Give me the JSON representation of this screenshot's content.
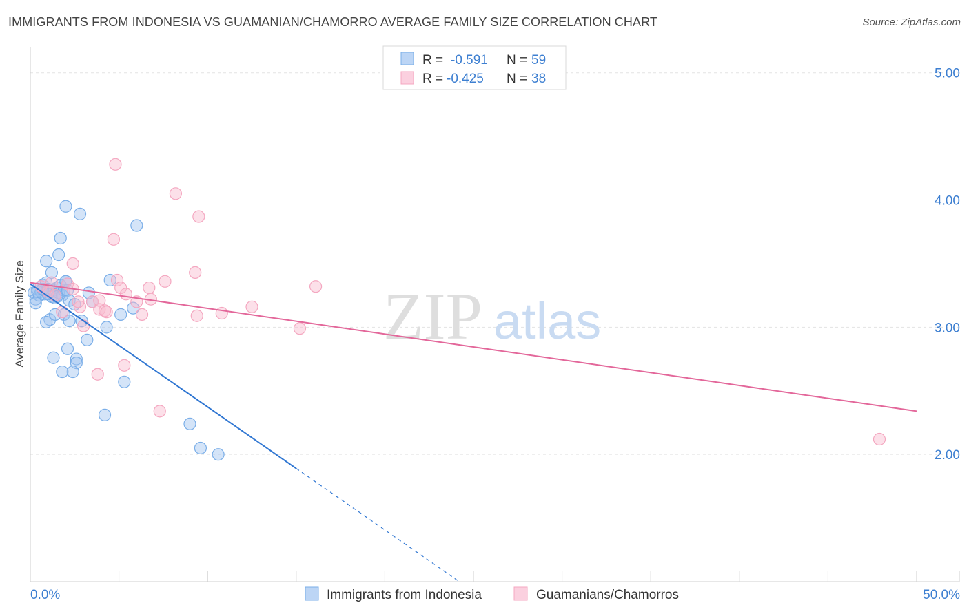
{
  "title": "IMMIGRANTS FROM INDONESIA VS GUAMANIAN/CHAMORRO AVERAGE FAMILY SIZE CORRELATION CHART",
  "source": "Source: ZipAtlas.com",
  "watermark": {
    "zip": "ZIP",
    "atlas": "atlas"
  },
  "legend": [
    {
      "r_label": "R =",
      "r_value": "-0.591",
      "n_label": "N =",
      "n_value": "59"
    },
    {
      "r_label": "R =",
      "r_value": "-0.425",
      "n_label": "N =",
      "n_value": "38"
    }
  ],
  "chart_data": {
    "type": "scatter",
    "title": "IMMIGRANTS FROM INDONESIA VS GUAMANIAN/CHAMORRO AVERAGE FAMILY SIZE CORRELATION CHART",
    "xlabel": "",
    "ylabel": "Average Family Size",
    "xlim": [
      0,
      50
    ],
    "ylim": [
      1.0,
      5.15
    ],
    "x_tick_labels": [
      "0.0%",
      "50.0%"
    ],
    "y_ticks": [
      2.0,
      3.0,
      4.0,
      5.0
    ],
    "y_tick_labels": [
      "2.00",
      "3.00",
      "4.00",
      "5.00"
    ],
    "colors": {
      "blue": "#7aaee8",
      "blue_line": "#2f76d2",
      "pink": "#f4a7c0",
      "pink_line": "#e3679a",
      "tick": "#3d7fd1"
    },
    "series": [
      {
        "name": "Immigrants from Indonesia",
        "color": "blue",
        "points": [
          [
            0.2,
            3.27
          ],
          [
            0.3,
            3.22
          ],
          [
            0.4,
            3.3
          ],
          [
            0.5,
            3.25
          ],
          [
            0.6,
            3.28
          ],
          [
            0.7,
            3.33
          ],
          [
            0.8,
            3.26
          ],
          [
            0.9,
            3.35
          ],
          [
            1.0,
            3.3
          ],
          [
            1.1,
            3.28
          ],
          [
            1.2,
            3.24
          ],
          [
            1.3,
            3.29
          ],
          [
            1.4,
            3.23
          ],
          [
            1.5,
            3.31
          ],
          [
            1.6,
            3.27
          ],
          [
            1.7,
            3.33
          ],
          [
            1.8,
            3.25
          ],
          [
            1.9,
            3.29
          ],
          [
            2.0,
            3.36
          ],
          [
            2.1,
            3.29
          ],
          [
            2.2,
            3.21
          ],
          [
            0.3,
            3.19
          ],
          [
            0.9,
            3.52
          ],
          [
            1.1,
            3.06
          ],
          [
            1.4,
            3.1
          ],
          [
            1.6,
            3.57
          ],
          [
            1.9,
            3.1
          ],
          [
            2.0,
            3.36
          ],
          [
            2.2,
            3.05
          ],
          [
            0.9,
            3.04
          ],
          [
            1.2,
            3.43
          ],
          [
            1.7,
            3.7
          ],
          [
            2.0,
            3.95
          ],
          [
            2.8,
            3.89
          ],
          [
            6.0,
            3.8
          ],
          [
            2.9,
            3.05
          ],
          [
            3.3,
            3.27
          ],
          [
            4.3,
            3.0
          ],
          [
            4.5,
            3.37
          ],
          [
            5.1,
            3.1
          ],
          [
            5.8,
            3.15
          ],
          [
            3.2,
            2.9
          ],
          [
            2.1,
            2.83
          ],
          [
            2.6,
            2.75
          ],
          [
            2.6,
            2.72
          ],
          [
            1.3,
            2.76
          ],
          [
            2.4,
            2.65
          ],
          [
            1.8,
            2.65
          ],
          [
            5.3,
            2.57
          ],
          [
            4.2,
            2.31
          ],
          [
            9.0,
            2.24
          ],
          [
            9.6,
            2.05
          ],
          [
            10.6,
            2.0
          ],
          [
            0.4,
            3.28
          ],
          [
            0.7,
            3.3
          ],
          [
            1.0,
            3.26
          ],
          [
            1.5,
            3.24
          ],
          [
            2.5,
            3.18
          ],
          [
            3.5,
            3.2
          ]
        ],
        "trend": {
          "x0": 0.0,
          "y0": 3.34,
          "x1": 15.0,
          "y1": 1.89,
          "dash_x1": 24.2,
          "dash_y1": 1.0
        }
      },
      {
        "name": "Guamanians/Chamorros",
        "color": "pink",
        "points": [
          [
            0.6,
            3.32
          ],
          [
            1.0,
            3.28
          ],
          [
            1.4,
            3.25
          ],
          [
            2.1,
            3.34
          ],
          [
            2.4,
            3.3
          ],
          [
            2.4,
            3.5
          ],
          [
            1.8,
            3.12
          ],
          [
            2.8,
            3.16
          ],
          [
            3.0,
            3.01
          ],
          [
            3.5,
            3.2
          ],
          [
            3.9,
            3.14
          ],
          [
            3.9,
            3.21
          ],
          [
            4.2,
            3.13
          ],
          [
            4.7,
            3.69
          ],
          [
            4.9,
            3.37
          ],
          [
            5.1,
            3.31
          ],
          [
            5.4,
            3.26
          ],
          [
            6.0,
            3.2
          ],
          [
            6.3,
            3.1
          ],
          [
            6.7,
            3.31
          ],
          [
            6.8,
            3.22
          ],
          [
            7.6,
            3.36
          ],
          [
            4.3,
            3.12
          ],
          [
            8.2,
            4.05
          ],
          [
            9.5,
            3.87
          ],
          [
            9.3,
            3.43
          ],
          [
            9.4,
            3.09
          ],
          [
            10.8,
            3.11
          ],
          [
            12.5,
            3.16
          ],
          [
            15.2,
            2.99
          ],
          [
            16.1,
            3.32
          ],
          [
            4.8,
            4.28
          ],
          [
            5.3,
            2.7
          ],
          [
            3.8,
            2.63
          ],
          [
            7.3,
            2.34
          ],
          [
            1.2,
            3.35
          ],
          [
            2.7,
            3.2
          ],
          [
            47.9,
            2.12
          ]
        ],
        "trend": {
          "x0": 0.0,
          "y0": 3.35,
          "x1": 50.0,
          "y1": 2.34
        }
      }
    ]
  }
}
